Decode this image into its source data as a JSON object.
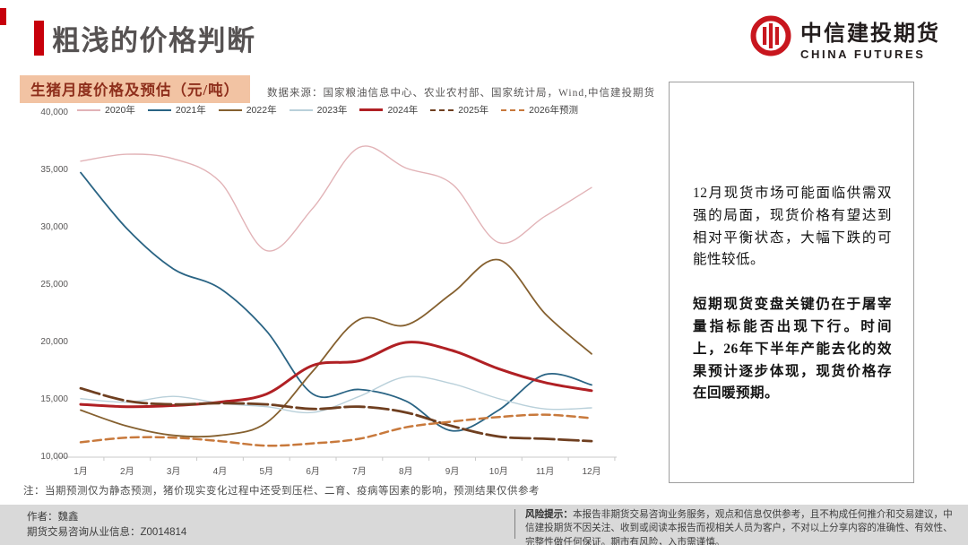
{
  "header": {
    "title": "粗浅的价格判断"
  },
  "logo": {
    "cn": "中信建投期货",
    "en": "CHINA FUTURES",
    "brand_color": "#c8161e"
  },
  "chart_data": {
    "type": "line",
    "title": "生猪月度价格及预估（元/吨）",
    "source": "数据来源：国家粮油信息中心、农业农村部、国家统计局，Wind,中信建投期货",
    "note": "注：当期预测仅为静态预测，猪价现实变化过程中还受到压栏、二育、疫病等因素的影响，预测结果仅供参考",
    "categories": [
      "1月",
      "2月",
      "3月",
      "4月",
      "5月",
      "6月",
      "7月",
      "8月",
      "9月",
      "10月",
      "11月",
      "12月"
    ],
    "ylim": [
      10000,
      40000
    ],
    "y_tick_labels": [
      "40,000",
      "35,000",
      "30,000",
      "25,000",
      "20,000",
      "15,000",
      "10,000"
    ],
    "grid": false,
    "legend_position": "top",
    "series": [
      {
        "name": "2020年",
        "color": "#e2b3b7",
        "width": 1.4,
        "dashed": false,
        "values": [
          35800,
          36400,
          36000,
          34000,
          28000,
          31700,
          37000,
          35200,
          33800,
          28700,
          31000,
          33500
        ]
      },
      {
        "name": "2021年",
        "color": "#2a6484",
        "width": 1.8,
        "dashed": false,
        "values": [
          34800,
          29900,
          26400,
          24700,
          21000,
          15500,
          15900,
          14900,
          12300,
          14100,
          17200,
          16300
        ]
      },
      {
        "name": "2022年",
        "color": "#85602f",
        "width": 1.8,
        "dashed": false,
        "values": [
          14100,
          12700,
          11900,
          11900,
          13000,
          17500,
          22000,
          21500,
          24300,
          27200,
          22500,
          19000
        ]
      },
      {
        "name": "2023年",
        "color": "#b9d0da",
        "width": 1.4,
        "dashed": false,
        "values": [
          15100,
          14800,
          15300,
          14700,
          14400,
          13900,
          15300,
          17000,
          16400,
          15100,
          14200,
          14300
        ]
      },
      {
        "name": "2024年",
        "color": "#b02024",
        "width": 3,
        "dashed": false,
        "values": [
          14600,
          14400,
          14500,
          14800,
          15500,
          18000,
          18400,
          20000,
          19300,
          17700,
          16500,
          15800
        ]
      },
      {
        "name": "2025年",
        "color": "#6f3f20",
        "width": 2.8,
        "dashed": true,
        "plot_dash": "22 5",
        "values": [
          16000,
          14900,
          14600,
          14700,
          14600,
          14200,
          14400,
          13900,
          12700,
          11800,
          11600,
          11400
        ]
      },
      {
        "name": "2026年预测",
        "color": "#c8793c",
        "width": 2.5,
        "dashed": true,
        "plot_dash": "9 5",
        "values": [
          11300,
          11700,
          11700,
          11400,
          11000,
          11200,
          11600,
          12600,
          13100,
          13500,
          13700,
          13400
        ]
      }
    ]
  },
  "panel": {
    "para1": "12月现货市场可能面临供需双强的局面，现货价格有望达到相对平衡状态，大幅下跌的可能性较低。",
    "para2": "短期现货变盘关键仍在于屠宰量指标能否出现下行。时间上，26年下半年产能去化的效果预计逐步体现，现货价格存在回暖预期。"
  },
  "footer": {
    "author_line1": "作者：魏鑫",
    "author_line2": "期货交易咨询从业信息：Z0014814",
    "risk_bold": "风险提示：",
    "risk_text": "本报告非期货交易咨询业务服务，观点和信息仅供参考，且不构成任何推介和交易建议，中信建投期货不因关注、收到或阅读本报告而视相关人员为客户，不对以上分享内容的准确性、有效性、完整性做任何保证。期市有风险，入市需谨慎。"
  }
}
